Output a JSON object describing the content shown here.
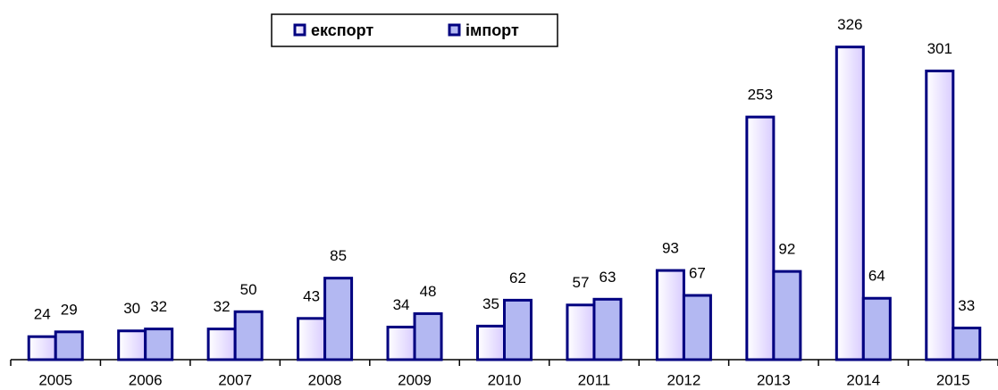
{
  "chart_data": {
    "type": "bar",
    "categories": [
      "2005",
      "2006",
      "2007",
      "2008",
      "2009",
      "2010",
      "2011",
      "2012",
      "2013",
      "2014",
      "2015"
    ],
    "series": [
      {
        "name": "експорт",
        "color": "#e6dcff",
        "values": [
          24,
          30,
          32,
          43,
          34,
          35,
          57,
          93,
          253,
          326,
          301
        ]
      },
      {
        "name": "імпорт",
        "color": "#b3b8f2",
        "values": [
          29,
          32,
          50,
          85,
          48,
          62,
          63,
          67,
          92,
          64,
          33
        ]
      }
    ],
    "ylim": [
      0,
      375
    ],
    "legend": "top"
  }
}
